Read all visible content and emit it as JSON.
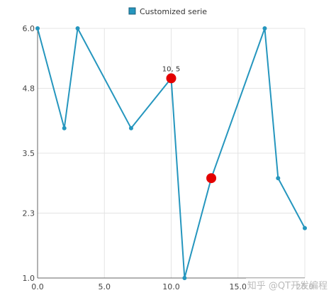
{
  "chart_data": {
    "type": "line",
    "title": "",
    "xlabel": "",
    "ylabel": "",
    "xlim": [
      0,
      20
    ],
    "ylim": [
      1.0,
      6.0
    ],
    "x_ticks": [
      "0.0",
      "5.0",
      "10.0",
      "15.0",
      "20.0"
    ],
    "y_ticks": [
      "1.0",
      "2.3",
      "3.5",
      "4.8",
      "6.0"
    ],
    "grid": true,
    "legend_position": "top-center",
    "series": [
      {
        "name": "Customized serie",
        "color": "#2596be",
        "points": [
          {
            "x": 0,
            "y": 6
          },
          {
            "x": 2,
            "y": 4
          },
          {
            "x": 3,
            "y": 6
          },
          {
            "x": 7,
            "y": 4
          },
          {
            "x": 10,
            "y": 5
          },
          {
            "x": 11,
            "y": 1
          },
          {
            "x": 13,
            "y": 3
          },
          {
            "x": 17,
            "y": 6
          },
          {
            "x": 18,
            "y": 3
          },
          {
            "x": 20,
            "y": 2
          }
        ]
      }
    ],
    "highlighted_points": [
      {
        "x": 10,
        "y": 5,
        "label": "10, 5",
        "color": "#e30000"
      },
      {
        "x": 13,
        "y": 3,
        "label": "",
        "color": "#e30000"
      }
    ]
  },
  "watermark": "知乎 @QT开发编程"
}
